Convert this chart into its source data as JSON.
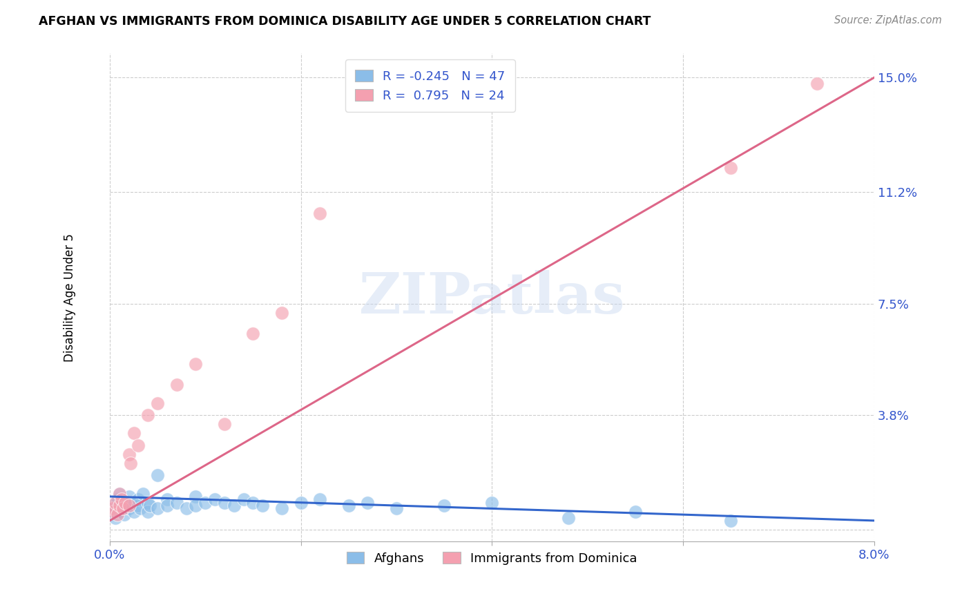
{
  "title": "AFGHAN VS IMMIGRANTS FROM DOMINICA DISABILITY AGE UNDER 5 CORRELATION CHART",
  "source": "Source: ZipAtlas.com",
  "ylabel_label": "Disability Age Under 5",
  "xmin": 0.0,
  "xmax": 0.08,
  "ymin": -0.004,
  "ymax": 0.158,
  "ytick_vals": [
    0.0,
    0.038,
    0.075,
    0.112,
    0.15
  ],
  "ytick_labels": [
    "",
    "3.8%",
    "7.5%",
    "11.2%",
    "15.0%"
  ],
  "xtick_vals": [
    0.0,
    0.02,
    0.04,
    0.06,
    0.08
  ],
  "xtick_labels": [
    "0.0%",
    "",
    "",
    "",
    "8.0%"
  ],
  "legend_r_blue": "-0.245",
  "legend_n_blue": "47",
  "legend_r_pink": "0.795",
  "legend_n_pink": "24",
  "blue_color": "#8BBDE8",
  "pink_color": "#F4A0B0",
  "blue_line_color": "#3366CC",
  "pink_line_color": "#DD6688",
  "watermark": "ZIPatlas",
  "afghans_x": [
    0.0002,
    0.0004,
    0.0006,
    0.0008,
    0.001,
    0.001,
    0.0012,
    0.0013,
    0.0015,
    0.0016,
    0.002,
    0.002,
    0.0022,
    0.0025,
    0.003,
    0.003,
    0.0032,
    0.0035,
    0.004,
    0.004,
    0.0042,
    0.005,
    0.005,
    0.006,
    0.006,
    0.007,
    0.008,
    0.009,
    0.009,
    0.01,
    0.011,
    0.012,
    0.013,
    0.014,
    0.015,
    0.016,
    0.018,
    0.02,
    0.022,
    0.025,
    0.027,
    0.03,
    0.035,
    0.04,
    0.048,
    0.055,
    0.065
  ],
  "afghans_y": [
    0.006,
    0.008,
    0.004,
    0.01,
    0.006,
    0.012,
    0.007,
    0.009,
    0.005,
    0.008,
    0.007,
    0.011,
    0.009,
    0.006,
    0.008,
    0.01,
    0.007,
    0.012,
    0.009,
    0.006,
    0.008,
    0.018,
    0.007,
    0.01,
    0.008,
    0.009,
    0.007,
    0.011,
    0.008,
    0.009,
    0.01,
    0.009,
    0.008,
    0.01,
    0.009,
    0.008,
    0.007,
    0.009,
    0.01,
    0.008,
    0.009,
    0.007,
    0.008,
    0.009,
    0.004,
    0.006,
    0.003
  ],
  "dominica_x": [
    0.0002,
    0.0004,
    0.0006,
    0.0008,
    0.001,
    0.001,
    0.0012,
    0.0014,
    0.0016,
    0.002,
    0.002,
    0.0022,
    0.0025,
    0.003,
    0.004,
    0.005,
    0.007,
    0.009,
    0.012,
    0.015,
    0.018,
    0.022,
    0.065,
    0.074
  ],
  "dominica_y": [
    0.007,
    0.006,
    0.009,
    0.005,
    0.008,
    0.012,
    0.01,
    0.007,
    0.009,
    0.008,
    0.025,
    0.022,
    0.032,
    0.028,
    0.038,
    0.042,
    0.048,
    0.055,
    0.035,
    0.065,
    0.072,
    0.105,
    0.12,
    0.148
  ],
  "blue_trendline_x": [
    0.0,
    0.08
  ],
  "blue_trendline_y": [
    0.011,
    0.003
  ],
  "pink_trendline_x": [
    0.0,
    0.08
  ],
  "pink_trendline_y": [
    0.003,
    0.15
  ]
}
